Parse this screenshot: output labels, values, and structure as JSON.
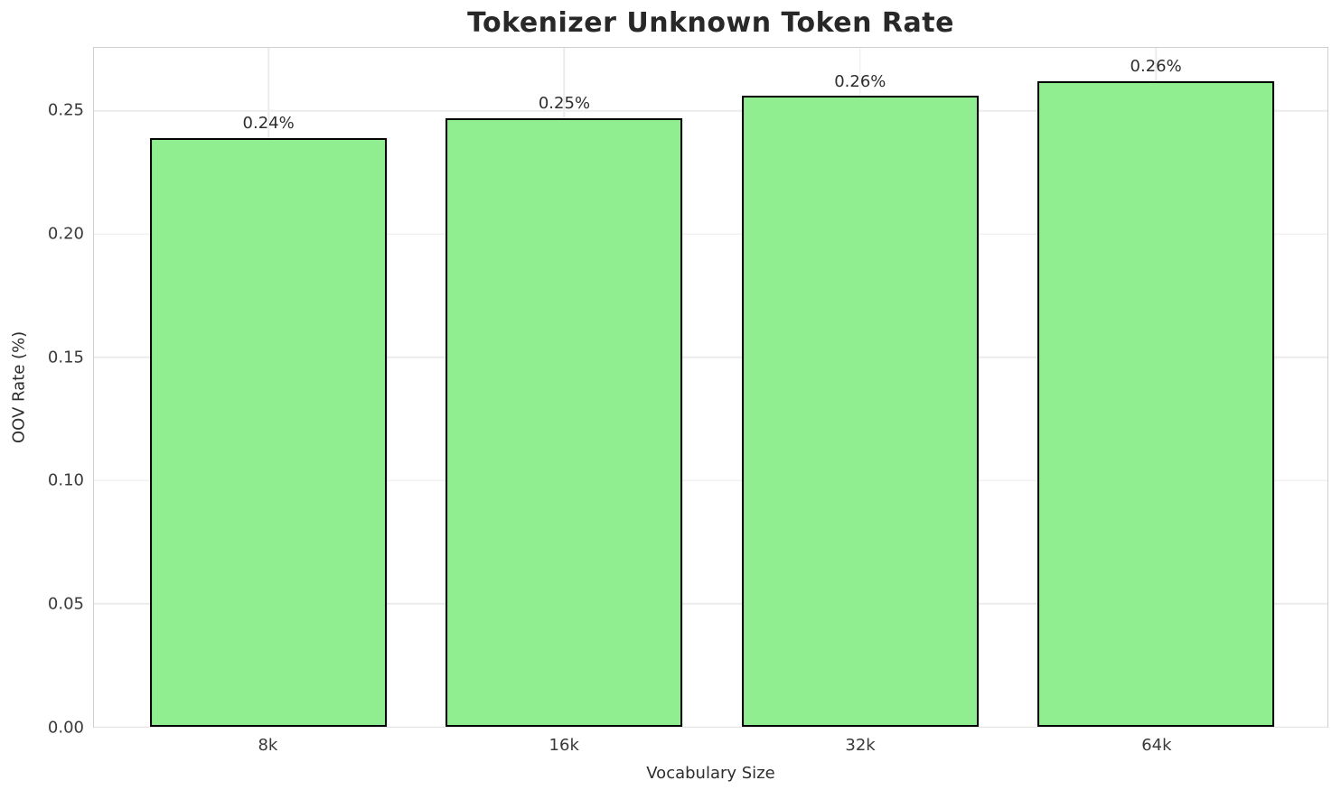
{
  "chart_data": {
    "type": "bar",
    "title": "Tokenizer Unknown Token Rate",
    "xlabel": "Vocabulary Size",
    "ylabel": "OOV Rate (%)",
    "categories": [
      "8k",
      "16k",
      "32k",
      "64k"
    ],
    "values": [
      0.239,
      0.247,
      0.256,
      0.262
    ],
    "bar_value_labels": [
      "0.24%",
      "0.25%",
      "0.26%",
      "0.26%"
    ],
    "yticks": [
      0.0,
      0.05,
      0.1,
      0.15,
      0.2,
      0.25
    ],
    "ytick_labels": [
      "0.00",
      "0.05",
      "0.10",
      "0.15",
      "0.20",
      "0.25"
    ],
    "ylim": [
      0,
      0.2756
    ],
    "xlim": [
      -0.59,
      3.58
    ],
    "bar_width_data_units": 0.8,
    "grid": true,
    "legend": "none",
    "colors": {
      "bar_fill": "#90ee90",
      "bar_edge": "#000000",
      "grid_line": "#ebebeb",
      "spine": "#cfcfcf",
      "title_text": "#282828",
      "tick_text": "#3a3a3a",
      "background": "#ffffff"
    }
  }
}
